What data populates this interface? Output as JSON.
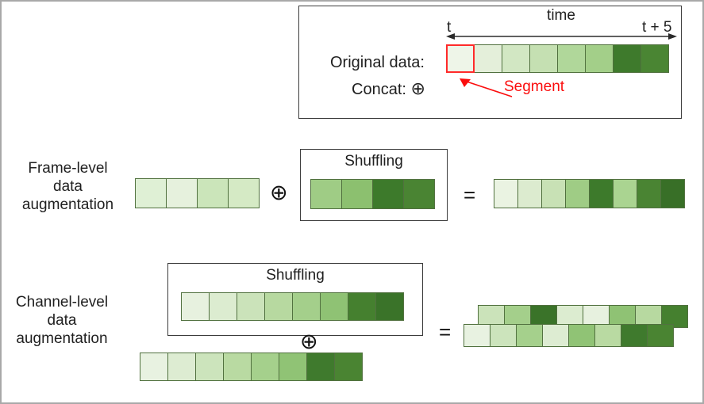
{
  "legend": {
    "time_label": "time",
    "t_start": "t",
    "t_end": "t + 5",
    "original_label": "Original data:",
    "concat_label": "Concat:",
    "concat_symbol": "⊕",
    "segment_label": "Segment",
    "segment_color": "#fb0d0d",
    "highlight_index": 0,
    "original_cells": [
      "#eef5e8",
      "#e4efda",
      "#d2e7c3",
      "#c5e0b2",
      "#b0d79a",
      "#a3cf89",
      "#3e7a2c",
      "#4a8533"
    ]
  },
  "frame_level": {
    "label_lines": [
      "Frame-level",
      "data",
      "augmentation"
    ],
    "left_cells": [
      "#dff0d5",
      "#e6f1dd",
      "#cbe5ba",
      "#d5eac5"
    ],
    "concat_symbol": "⊕",
    "shuffling_label": "Shuffling",
    "shuffled_cells": [
      "#9fcc85",
      "#8cc06f",
      "#3d7a2b",
      "#4a8433"
    ],
    "equals": "=",
    "result_cells": [
      "#eaf3e2",
      "#dcebcf",
      "#c8e1b5",
      "#9fcc85",
      "#3d7a2b",
      "#aad491",
      "#4a8433",
      "#386f27"
    ]
  },
  "channel_level": {
    "label_lines": [
      "Channel-level",
      "data",
      "augmentation"
    ],
    "shuffling_label": "Shuffling",
    "shuffled_cells": [
      "#e7f1df",
      "#dcecd0",
      "#cbe3ba",
      "#b7d9a0",
      "#a4cf8b",
      "#8fc274",
      "#45802f",
      "#3a7329"
    ],
    "concat_symbol": "⊕",
    "bottom_cells": [
      "#e8f2e1",
      "#ddecd2",
      "#cce4bc",
      "#b9daa2",
      "#a5d08c",
      "#90c375",
      "#3f7a2d",
      "#4a8432"
    ],
    "equals": "=",
    "result_back_cells": [
      "#cbe3ba",
      "#a4cf8b",
      "#3a7329",
      "#dcecd0",
      "#e7f1df",
      "#8fc274",
      "#b7d9a0",
      "#45802f"
    ],
    "result_front_cells": [
      "#e8f2e1",
      "#cce4bc",
      "#a5d08c",
      "#ddecd2",
      "#90c375",
      "#b9daa2",
      "#3f7a2d",
      "#4a8432"
    ]
  }
}
